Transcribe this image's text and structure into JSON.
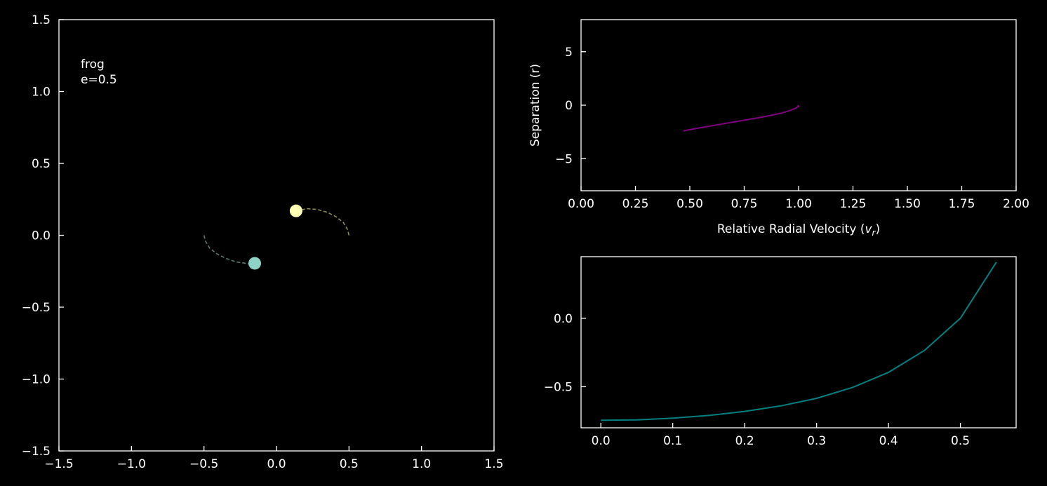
{
  "chart_data": [
    {
      "type": "scatter",
      "panel": "orbit",
      "annotation": [
        "frog",
        "e=0.5"
      ],
      "xlim": [
        -1.5,
        1.5
      ],
      "ylim": [
        -1.5,
        1.5
      ],
      "xticks": [
        -1.5,
        -1.0,
        -0.5,
        0.0,
        0.5,
        1.0,
        1.5
      ],
      "xtick_labels": [
        "−1.5",
        "−1.0",
        "−0.5",
        "0.0",
        "0.5",
        "1.0",
        "1.5"
      ],
      "yticks": [
        -1.5,
        -1.0,
        -0.5,
        0.0,
        0.5,
        1.0,
        1.5
      ],
      "ytick_labels": [
        "−1.5",
        "−1.0",
        "−0.5",
        "0.0",
        "0.5",
        "1.0",
        "1.5"
      ],
      "grid": false,
      "trails": [
        {
          "color": "#5a7a6a",
          "style": "dashed",
          "points": [
            [
              -0.5,
              0.0
            ],
            [
              -0.49,
              -0.04
            ],
            [
              -0.46,
              -0.09
            ],
            [
              -0.41,
              -0.13
            ],
            [
              -0.35,
              -0.16
            ],
            [
              -0.28,
              -0.185
            ],
            [
              -0.21,
              -0.195
            ],
            [
              -0.15,
              -0.195
            ]
          ]
        },
        {
          "color": "#8a8a5a",
          "style": "dashed",
          "points": [
            [
              0.5,
              0.0
            ],
            [
              0.49,
              0.04
            ],
            [
              0.46,
              0.09
            ],
            [
              0.41,
              0.13
            ],
            [
              0.35,
              0.16
            ],
            [
              0.28,
              0.18
            ],
            [
              0.21,
              0.185
            ],
            [
              0.135,
              0.17
            ]
          ]
        }
      ],
      "bodies": [
        {
          "x": -0.15,
          "y": -0.195,
          "color": "#8dd3c7"
        },
        {
          "x": 0.135,
          "y": 0.17,
          "color": "#ffffb3"
        }
      ]
    },
    {
      "type": "line",
      "panel": "phase",
      "xlabel": "Relative Radial Velocity (v_r)",
      "ylabel": "Separation (r)",
      "xlim": [
        0.0,
        2.0
      ],
      "ylim": [
        -8,
        8
      ],
      "xticks": [
        0.0,
        0.25,
        0.5,
        0.75,
        1.0,
        1.25,
        1.5,
        1.75,
        2.0
      ],
      "xtick_labels": [
        "0.00",
        "0.25",
        "0.50",
        "0.75",
        "1.00",
        "1.25",
        "1.50",
        "1.75",
        "2.00"
      ],
      "yticks": [
        5,
        0,
        -5
      ],
      "ytick_labels": [
        "5",
        "0",
        "−5"
      ],
      "grid": false,
      "series": [
        {
          "color": "#800080",
          "x": [
            0.47,
            0.55,
            0.65,
            0.75,
            0.85,
            0.92,
            0.96,
            0.985,
            1.0,
            0.995
          ],
          "y": [
            -2.4,
            -2.1,
            -1.75,
            -1.4,
            -1.05,
            -0.75,
            -0.5,
            -0.3,
            -0.1,
            0.0
          ]
        }
      ]
    },
    {
      "type": "line",
      "panel": "energy",
      "xlim": [
        -0.0275,
        0.5775
      ],
      "ylim": [
        -0.8,
        0.45
      ],
      "xticks": [
        0.0,
        0.1,
        0.2,
        0.3,
        0.4,
        0.5
      ],
      "xtick_labels": [
        "0.0",
        "0.1",
        "0.2",
        "0.3",
        "0.4",
        "0.5"
      ],
      "yticks": [
        0.0,
        -0.5
      ],
      "ytick_labels": [
        "0.0",
        "−0.5"
      ],
      "grid": false,
      "series": [
        {
          "color": "#008080",
          "x": [
            0.0,
            0.05,
            0.1,
            0.15,
            0.2,
            0.25,
            0.3,
            0.35,
            0.4,
            0.45,
            0.5,
            0.55
          ],
          "y": [
            -0.745,
            -0.742,
            -0.73,
            -0.71,
            -0.68,
            -0.64,
            -0.585,
            -0.505,
            -0.395,
            -0.235,
            0.0,
            0.41
          ]
        }
      ]
    }
  ]
}
